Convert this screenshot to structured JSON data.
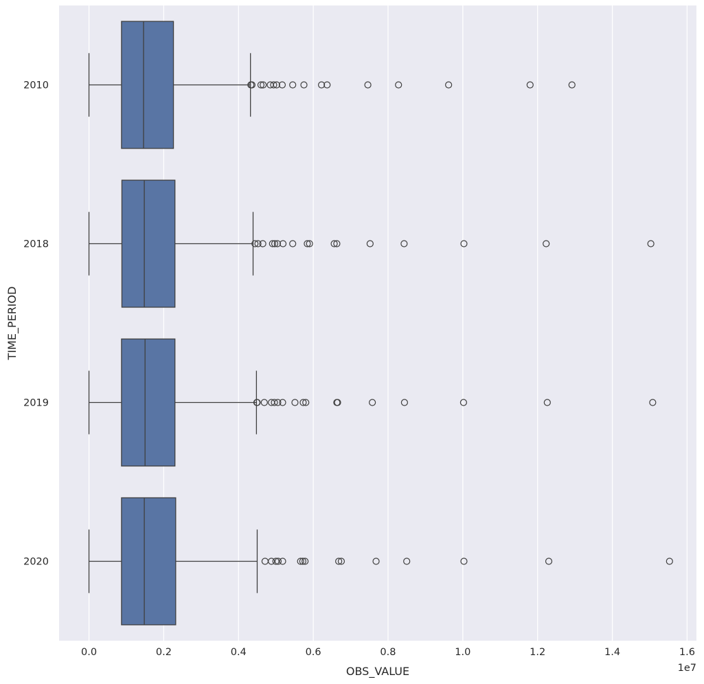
{
  "chart_data": {
    "type": "boxplot",
    "orientation": "horizontal",
    "title": "",
    "xlabel": "OBS_VALUE",
    "ylabel": "TIME_PERIOD",
    "x_offset_label": "1e7",
    "x_scale_factor": 10000000,
    "xlim": [
      -0.08,
      1.625
    ],
    "x_ticks": [
      0.0,
      0.2,
      0.4,
      0.6,
      0.8,
      1.0,
      1.2,
      1.4,
      1.6
    ],
    "x_tick_labels": [
      "0.0",
      "0.2",
      "0.4",
      "0.6",
      "0.8",
      "1.0",
      "1.2",
      "1.4",
      "1.6"
    ],
    "grid": true,
    "legend": "none",
    "colors": {
      "box": "#5975a4",
      "line": "#3f3f3f",
      "background": "#eaeaf2",
      "grid": "#ffffff"
    },
    "categories": [
      "2010",
      "2018",
      "2019",
      "2020"
    ],
    "boxes": [
      {
        "category": "2010",
        "whisker_low": 0.0,
        "q1": 0.087,
        "median": 0.146,
        "q3": 0.226,
        "whisker_high": 0.432,
        "outliers": [
          0.433,
          0.436,
          0.46,
          0.466,
          0.485,
          0.494,
          0.502,
          0.517,
          0.545,
          0.575,
          0.622,
          0.637,
          0.746,
          0.828,
          0.962,
          1.18,
          1.292
        ]
      },
      {
        "category": "2018",
        "whisker_low": 0.0,
        "q1": 0.088,
        "median": 0.148,
        "q3": 0.23,
        "whisker_high": 0.439,
        "outliers": [
          0.444,
          0.452,
          0.465,
          0.491,
          0.497,
          0.504,
          0.519,
          0.545,
          0.584,
          0.59,
          0.656,
          0.663,
          0.752,
          0.843,
          1.003,
          1.223,
          1.503
        ]
      },
      {
        "category": "2019",
        "whisker_low": 0.0,
        "q1": 0.087,
        "median": 0.15,
        "q3": 0.23,
        "whisker_high": 0.448,
        "outliers": [
          0.449,
          0.45,
          0.469,
          0.488,
          0.496,
          0.505,
          0.518,
          0.551,
          0.573,
          0.58,
          0.663,
          0.665,
          0.758,
          0.844,
          1.002,
          1.226,
          1.508
        ]
      },
      {
        "category": "2020",
        "whisker_low": 0.0,
        "q1": 0.087,
        "median": 0.148,
        "q3": 0.232,
        "whisker_high": 0.45,
        "outliers": [
          0.471,
          0.488,
          0.5,
          0.506,
          0.518,
          0.566,
          0.572,
          0.578,
          0.668,
          0.675,
          0.768,
          0.85,
          1.003,
          1.23,
          1.553
        ]
      }
    ]
  }
}
